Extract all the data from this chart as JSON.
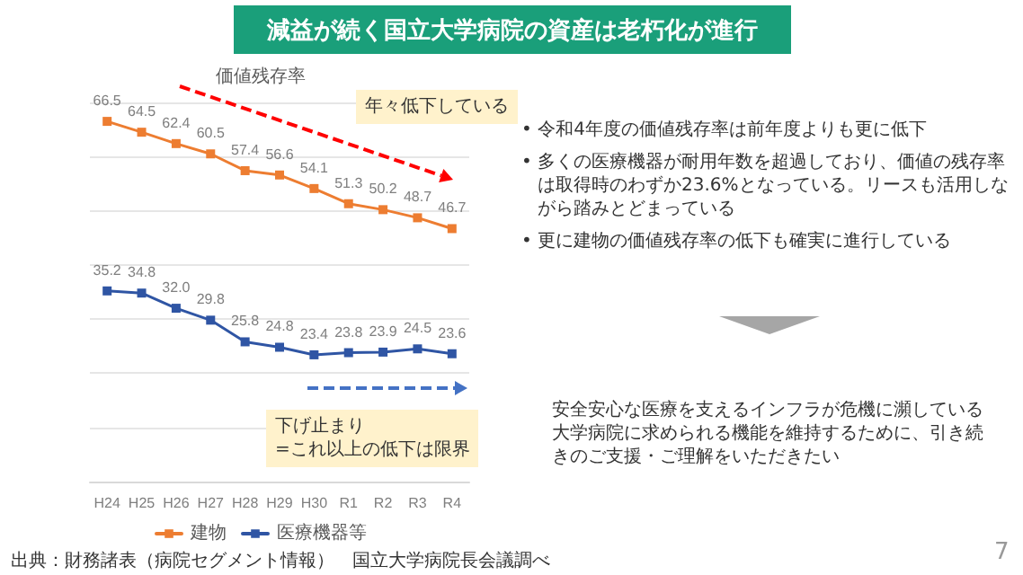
{
  "chart_data": {
    "type": "line",
    "title": "減益が続く国立大学病院の資産は老朽化が進行",
    "subtitle": "価値残存率",
    "categories": [
      "H24",
      "H25",
      "H26",
      "H27",
      "H28",
      "H29",
      "H30",
      "R1",
      "R2",
      "R3",
      "R4"
    ],
    "series": [
      {
        "name": "建物",
        "color": "#ed7d31",
        "values": [
          66.5,
          64.5,
          62.4,
          60.5,
          57.4,
          56.6,
          54.1,
          51.3,
          50.2,
          48.7,
          46.7
        ],
        "value_labels": [
          "66.5",
          "64.5",
          "62.4",
          "60.5",
          "57.4",
          "56.6",
          "54.1",
          "51.3",
          "50.2",
          "48.7",
          "46.7"
        ]
      },
      {
        "name": "医療機器等",
        "color": "#2f55a4",
        "values": [
          35.2,
          34.8,
          32.0,
          29.8,
          25.8,
          24.8,
          23.4,
          23.8,
          23.9,
          24.5,
          23.6
        ],
        "value_labels": [
          "35.2",
          "34.8",
          "32.0",
          "29.8",
          "25.8",
          "24.8",
          "23.4",
          "23.8",
          "23.9",
          "24.5",
          "23.6"
        ]
      }
    ],
    "ylim": [
      0,
      70
    ],
    "yticks": [
      {
        "value": 0,
        "label": null
      },
      {
        "value": 10,
        "label": null
      },
      {
        "value": 20,
        "label": null
      },
      {
        "value": 30,
        "label": null
      },
      {
        "value": 40,
        "label": null
      },
      {
        "value": 50,
        "label": null
      },
      {
        "value": 60,
        "label": null
      },
      {
        "value": 70,
        "label": null
      }
    ],
    "tick_labels": "x",
    "grid": "y",
    "legend": "bottom",
    "marker": "square",
    "line_style": "solid",
    "annotations": [
      "年々低下している",
      "下げ止まり\n=これ以上の低下は限界",
      "• 令和4年度の価値残存率は前年度よりも更に低下",
      "• 多くの医療機器が耐用年数を超過しており、価値の残存率は取得時のわずか23.6%となっている。リースも活用しながら踏みとどまっている",
      "• 更に建物の価値残存率の低下も確実に進行している",
      "安全安心な医療を支えるインフラが危機に瀕している大学病院に求められる機能を維持するために、引き続きのご支援・ご理解をいただきたい",
      "出典：財務諸表（病院セグメント情報）　国立大学病院長会議調べ",
      "7"
    ]
  }
}
